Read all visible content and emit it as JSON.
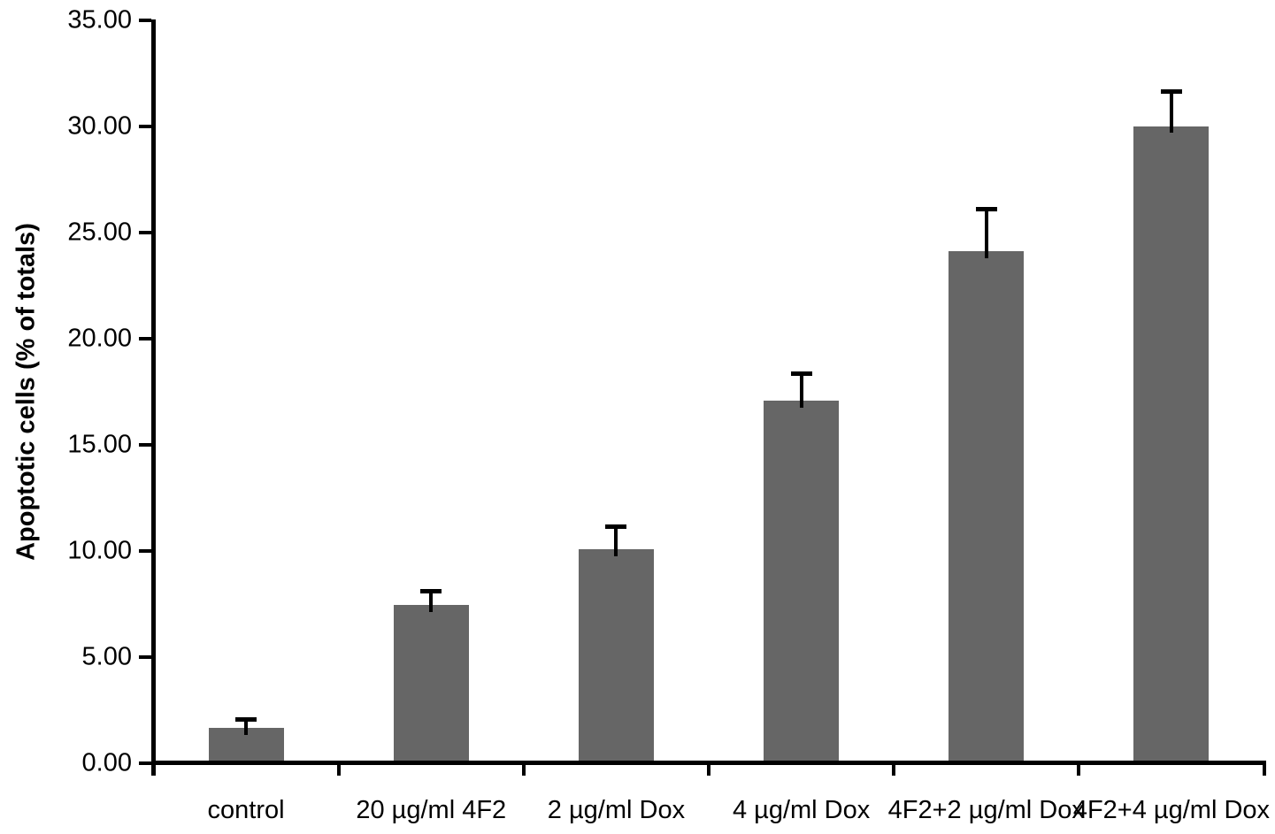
{
  "chart_data": {
    "type": "bar",
    "title": "",
    "xlabel": "",
    "ylabel": "Apoptotic cells (% of totals)",
    "categories": [
      "control",
      "20 µg/ml 4F2",
      "2 µg/ml Dox",
      "4 µg/ml Dox",
      "4F2+2 µg/ml Dox",
      "4F2+4 µg/ml Dox"
    ],
    "values": [
      1.65,
      7.45,
      10.05,
      17.05,
      24.1,
      30.0
    ],
    "errors_plus": [
      0.4,
      0.65,
      1.1,
      1.3,
      2.0,
      1.65
    ],
    "ylim": [
      0,
      35
    ],
    "ytick_step": 5,
    "ytick_labels": [
      "0.00",
      "5.00",
      "10.00",
      "15.00",
      "20.00",
      "25.00",
      "30.00",
      "35.00"
    ],
    "grid": false,
    "legend_position": "none",
    "bar_color": "#666666",
    "error_bar_color": "#000000",
    "axis_color": "#000000",
    "background_color": "#ffffff"
  }
}
